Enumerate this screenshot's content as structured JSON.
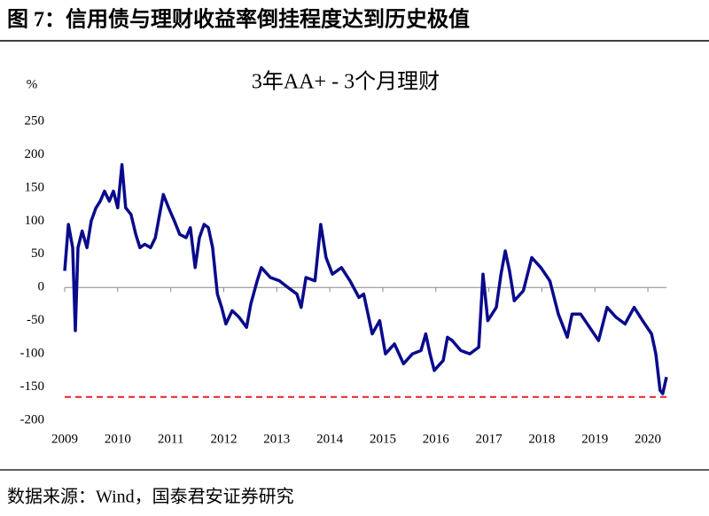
{
  "chart_data": {
    "type": "line",
    "figure_title": "图 7：信用债与理财收益率倒挂程度达到历史极值",
    "title": "3年AA+ - 3个月理财",
    "y_unit": "%",
    "source": "数据来源：Wind，国泰君安证券研究",
    "x": [
      2009.0,
      2009.07,
      2009.15,
      2009.2,
      2009.25,
      2009.33,
      2009.42,
      2009.5,
      2009.59,
      2009.67,
      2009.75,
      2009.84,
      2009.92,
      2010.0,
      2010.08,
      2010.15,
      2010.25,
      2010.34,
      2010.42,
      2010.51,
      2010.62,
      2010.71,
      2010.79,
      2010.86,
      2010.96,
      2011.07,
      2011.17,
      2011.29,
      2011.37,
      2011.46,
      2011.54,
      2011.63,
      2011.71,
      2011.79,
      2011.88,
      2011.96,
      2012.04,
      2012.16,
      2012.29,
      2012.43,
      2012.51,
      2012.63,
      2012.71,
      2012.88,
      2013.05,
      2013.21,
      2013.38,
      2013.46,
      2013.55,
      2013.72,
      2013.83,
      2013.93,
      2014.05,
      2014.22,
      2014.38,
      2014.55,
      2014.64,
      2014.8,
      2014.94,
      2015.05,
      2015.22,
      2015.39,
      2015.56,
      2015.72,
      2015.81,
      2015.89,
      2015.97,
      2016.14,
      2016.22,
      2016.31,
      2016.47,
      2016.64,
      2016.81,
      2016.89,
      2016.98,
      2017.14,
      2017.23,
      2017.31,
      2017.39,
      2017.48,
      2017.65,
      2017.81,
      2017.98,
      2018.15,
      2018.31,
      2018.48,
      2018.57,
      2018.73,
      2018.9,
      2019.07,
      2019.23,
      2019.4,
      2019.57,
      2019.74,
      2019.9,
      2020.07,
      2020.15,
      2020.23,
      2020.28,
      2020.35
    ],
    "series": [
      {
        "color": "#0a0a8c",
        "values": [
          25,
          95,
          60,
          -65,
          60,
          85,
          60,
          100,
          120,
          130,
          145,
          130,
          145,
          120,
          185,
          120,
          110,
          80,
          60,
          65,
          60,
          75,
          110,
          140,
          120,
          100,
          80,
          75,
          90,
          30,
          75,
          95,
          90,
          60,
          -10,
          -30,
          -55,
          -35,
          -45,
          -60,
          -25,
          10,
          30,
          15,
          10,
          0,
          -10,
          -30,
          15,
          10,
          95,
          45,
          20,
          30,
          10,
          -15,
          -10,
          -70,
          -50,
          -100,
          -85,
          -115,
          -100,
          -95,
          -70,
          -100,
          -125,
          -110,
          -75,
          -80,
          -95,
          -100,
          -90,
          20,
          -50,
          -30,
          20,
          55,
          25,
          -20,
          -5,
          45,
          30,
          10,
          -40,
          -75,
          -40,
          -40,
          -60,
          -80,
          -30,
          -45,
          -55,
          -30,
          -50,
          -70,
          -100,
          -155,
          -160,
          -135
        ]
      }
    ],
    "reference_line": {
      "value": -165,
      "color": "#e8202a"
    },
    "xlim": [
      2009,
      2020.35
    ],
    "xticks": [
      2009,
      2010,
      2011,
      2012,
      2013,
      2014,
      2015,
      2016,
      2017,
      2018,
      2019,
      2020
    ],
    "ylim": [
      -200,
      250
    ],
    "yticks": [
      -200,
      -150,
      -100,
      -50,
      0,
      50,
      100,
      150,
      200,
      250
    ]
  }
}
